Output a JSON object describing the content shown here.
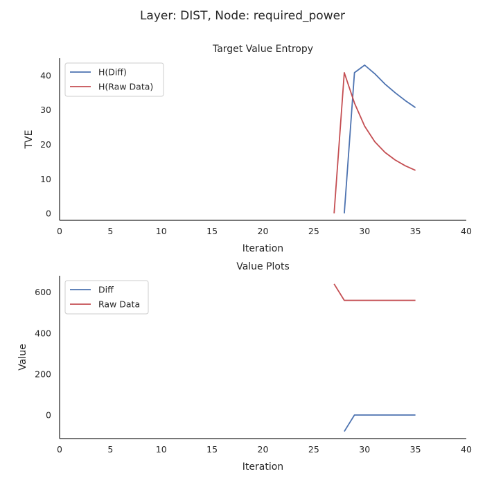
{
  "figure": {
    "suptitle": "Layer: DIST, Node: required_power"
  },
  "chart_data": [
    {
      "type": "line",
      "title": "Target Value Entropy",
      "xlabel": "Iteration",
      "ylabel": "TVE",
      "xlim": [
        0,
        40
      ],
      "ylim": [
        -2,
        45
      ],
      "xticks": [
        0,
        5,
        10,
        15,
        20,
        25,
        30,
        35,
        40
      ],
      "yticks": [
        0,
        10,
        20,
        30,
        40
      ],
      "grid": false,
      "legend_position": "top-left",
      "series": [
        {
          "name": "H(Diff)",
          "color": "#4c72b0",
          "x": [
            28,
            29,
            30,
            31,
            32,
            33,
            34,
            35
          ],
          "y": [
            0,
            40.8,
            43.0,
            40.5,
            37.5,
            35.0,
            32.7,
            30.7
          ]
        },
        {
          "name": "H(Raw Data)",
          "color": "#c44e52",
          "x": [
            27,
            28,
            29,
            30,
            31,
            32,
            33,
            34,
            35
          ],
          "y": [
            0,
            40.8,
            32.0,
            25.3,
            20.8,
            17.7,
            15.5,
            13.8,
            12.5
          ]
        }
      ]
    },
    {
      "type": "line",
      "title": "Value Plots",
      "xlabel": "Iteration",
      "ylabel": "Value",
      "xlim": [
        0,
        40
      ],
      "ylim": [
        -115,
        680
      ],
      "xticks": [
        0,
        5,
        10,
        15,
        20,
        25,
        30,
        35,
        40
      ],
      "yticks": [
        0,
        200,
        400,
        600
      ],
      "grid": false,
      "legend_position": "top-left",
      "series": [
        {
          "name": "Diff",
          "color": "#4c72b0",
          "x": [
            28,
            29,
            30,
            31,
            32,
            33,
            34,
            35
          ],
          "y": [
            -80,
            0,
            0,
            0,
            0,
            0,
            0,
            0
          ]
        },
        {
          "name": "Raw Data",
          "color": "#c44e52",
          "x": [
            27,
            28,
            29,
            30,
            31,
            32,
            33,
            34,
            35
          ],
          "y": [
            640,
            560,
            560,
            560,
            560,
            560,
            560,
            560,
            560
          ]
        }
      ]
    }
  ]
}
